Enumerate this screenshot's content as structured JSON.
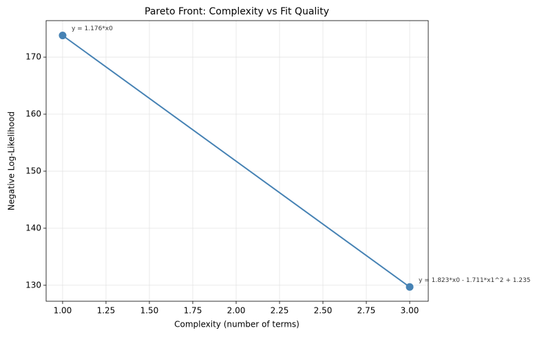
{
  "chart_data": {
    "type": "line",
    "title": "Pareto Front: Complexity vs Fit Quality",
    "x_label": "Complexity (number of terms)",
    "y_label": "Negative Log-Likelihood",
    "x": [
      1,
      3
    ],
    "series": [
      {
        "color": "#4682b4",
        "values": [
          173.8,
          129.7
        ]
      }
    ],
    "annotations": [
      "y = 1.176*x0",
      "y = 1.823*x0 - 1.711*x1^2 + 1.235"
    ],
    "xlim": [
      0.905,
      3.107
    ],
    "ylim": [
      127.2,
      176.4
    ],
    "xticks": [
      {
        "value": 1,
        "label": "1.00"
      },
      {
        "value": 1.25,
        "label": "1.25"
      },
      {
        "value": 1.5,
        "label": "1.50"
      },
      {
        "value": 1.75,
        "label": "1.75"
      },
      {
        "value": 2,
        "label": "2.00"
      },
      {
        "value": 2.25,
        "label": "2.25"
      },
      {
        "value": 2.5,
        "label": "2.50"
      },
      {
        "value": 2.75,
        "label": "2.75"
      },
      {
        "value": 3,
        "label": "3.00"
      }
    ],
    "yticks": [
      130,
      140,
      150,
      160,
      170
    ],
    "grid": true
  }
}
